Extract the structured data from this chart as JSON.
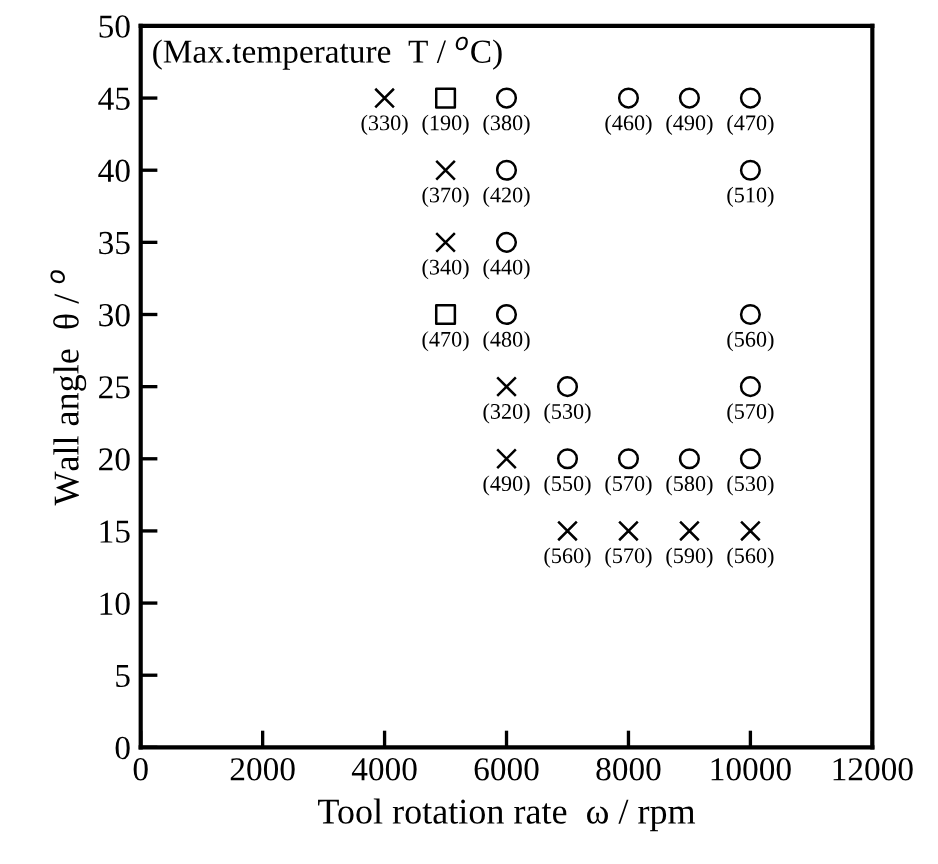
{
  "chart_data": {
    "type": "scatter",
    "xlabel": "Tool rotation rate  ω / rpm",
    "ylabel": "Wall angle  θ / $^{o}$",
    "annotations": [
      "(Max.temperature  T / $^{o}$C)",
      {
        "text": "(330)",
        "x": 4000,
        "y": 45
      },
      {
        "text": "(190)",
        "x": 5000,
        "y": 45
      },
      {
        "text": "(380)",
        "x": 6000,
        "y": 45
      },
      {
        "text": "(460)",
        "x": 8000,
        "y": 45
      },
      {
        "text": "(490)",
        "x": 9000,
        "y": 45
      },
      {
        "text": "(470)",
        "x": 10000,
        "y": 45
      },
      {
        "text": "(370)",
        "x": 5000,
        "y": 40
      },
      {
        "text": "(420)",
        "x": 6000,
        "y": 40
      },
      {
        "text": "(510)",
        "x": 10000,
        "y": 40
      },
      {
        "text": "(340)",
        "x": 5000,
        "y": 35
      },
      {
        "text": "(440)",
        "x": 6000,
        "y": 35
      },
      {
        "text": "(470)",
        "x": 5000,
        "y": 30
      },
      {
        "text": "(480)",
        "x": 6000,
        "y": 30
      },
      {
        "text": "(560)",
        "x": 10000,
        "y": 30
      },
      {
        "text": "(320)",
        "x": 6000,
        "y": 25
      },
      {
        "text": "(530)",
        "x": 7000,
        "y": 25
      },
      {
        "text": "(570)",
        "x": 10000,
        "y": 25
      },
      {
        "text": "(490)",
        "x": 6000,
        "y": 20
      },
      {
        "text": "(550)",
        "x": 7000,
        "y": 20
      },
      {
        "text": "(570)",
        "x": 8000,
        "y": 20
      },
      {
        "text": "(580)",
        "x": 9000,
        "y": 20
      },
      {
        "text": "(530)",
        "x": 10000,
        "y": 20
      },
      {
        "text": "(560)",
        "x": 7000,
        "y": 15
      },
      {
        "text": "(570)",
        "x": 8000,
        "y": 15
      },
      {
        "text": "(590)",
        "x": 9000,
        "y": 15
      },
      {
        "text": "(560)",
        "x": 10000,
        "y": 15
      }
    ],
    "xlim": [
      0,
      12000
    ],
    "xticks": [
      0,
      2000,
      4000,
      6000,
      8000,
      10000,
      12000
    ],
    "ylim": [
      0,
      50
    ],
    "yticks": [
      0,
      5,
      10,
      15,
      20,
      25,
      30,
      35,
      40,
      45,
      50
    ],
    "grid": false,
    "legend": false,
    "series": [
      {
        "marker": "cross",
        "color": "#000000",
        "x": [
          4000,
          5000,
          5000,
          6000,
          6000,
          7000,
          8000,
          9000,
          10000
        ],
        "values": [
          45,
          40,
          35,
          25,
          20,
          15,
          15,
          15,
          15
        ]
      },
      {
        "marker": "square",
        "color": "#000000",
        "x": [
          5000,
          5000
        ],
        "values": [
          45,
          30
        ]
      },
      {
        "marker": "circle",
        "color": "#000000",
        "x": [
          6000,
          8000,
          9000,
          10000,
          6000,
          10000,
          6000,
          6000,
          10000,
          7000,
          10000,
          7000,
          8000,
          9000,
          10000
        ],
        "values": [
          45,
          45,
          45,
          45,
          40,
          40,
          35,
          30,
          30,
          25,
          25,
          20,
          20,
          20,
          20
        ]
      }
    ]
  }
}
